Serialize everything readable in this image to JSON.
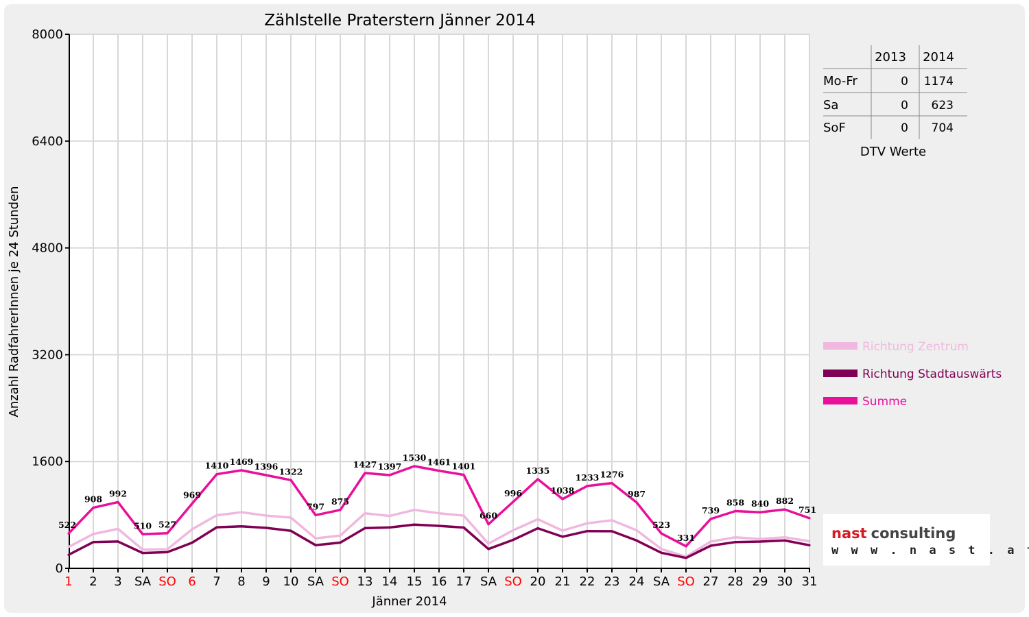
{
  "chart_data": {
    "type": "line",
    "title": "Zählstelle Praterstern Jänner 2014",
    "xlabel": "Jänner 2014",
    "ylabel": "Anzahl RadfahrerInnen je 24 Stunden",
    "ylim": [
      0,
      8000
    ],
    "yticks": [
      0,
      1600,
      3200,
      4800,
      6400,
      8000
    ],
    "grid": true,
    "legend_position": "right",
    "categories": [
      "1",
      "2",
      "3",
      "SA",
      "SO",
      "6",
      "7",
      "8",
      "9",
      "10",
      "SA",
      "SO",
      "13",
      "14",
      "15",
      "16",
      "17",
      "SA",
      "SO",
      "20",
      "21",
      "22",
      "23",
      "24",
      "SA",
      "SO",
      "27",
      "28",
      "29",
      "30",
      "31"
    ],
    "category_colors": [
      "#ff0000",
      "#000000",
      "#000000",
      "#000000",
      "#ff0000",
      "#ff0000",
      "#000000",
      "#000000",
      "#000000",
      "#000000",
      "#000000",
      "#ff0000",
      "#000000",
      "#000000",
      "#000000",
      "#000000",
      "#000000",
      "#000000",
      "#ff0000",
      "#000000",
      "#000000",
      "#000000",
      "#000000",
      "#000000",
      "#000000",
      "#ff0000",
      "#000000",
      "#000000",
      "#000000",
      "#000000",
      "#000000"
    ],
    "series": [
      {
        "name": "Richtung Zentrum",
        "color": "#f0b8de",
        "values": [
          320,
          515,
          590,
          280,
          285,
          585,
          795,
          840,
          790,
          760,
          450,
          490,
          825,
          785,
          875,
          825,
          790,
          370,
          570,
          735,
          565,
          675,
          720,
          570,
          290,
          175,
          400,
          465,
          440,
          465,
          405
        ]
      },
      {
        "name": "Richtung Stadtauswärts",
        "color": "#800055",
        "values": [
          202,
          393,
          402,
          230,
          242,
          384,
          615,
          629,
          606,
          562,
          347,
          385,
          602,
          612,
          655,
          636,
          611,
          290,
          426,
          600,
          473,
          558,
          556,
          417,
          233,
          156,
          339,
          393,
          400,
          417,
          346
        ]
      },
      {
        "name": "Summe",
        "color": "#e8109a",
        "values": [
          522,
          908,
          992,
          510,
          527,
          969,
          1410,
          1469,
          1396,
          1322,
          797,
          875,
          1427,
          1397,
          1530,
          1461,
          1401,
          660,
          996,
          1335,
          1038,
          1233,
          1276,
          987,
          523,
          331,
          739,
          858,
          840,
          882,
          751
        ]
      }
    ],
    "data_labels": [
      "522",
      "908",
      "992",
      "510",
      "527",
      "969",
      "1410",
      "1469",
      "1396",
      "1322",
      "797",
      "875",
      "1427",
      "1397",
      "1530",
      "1461",
      "1401",
      "660",
      "996",
      "1335",
      "1038",
      "1233",
      "1276",
      "987",
      "523",
      "331",
      "739",
      "858",
      "840",
      "882",
      "751"
    ]
  },
  "dtv_table": {
    "caption": "DTV Werte",
    "years": [
      "2013",
      "2014"
    ],
    "rows": [
      {
        "label": "Mo-Fr",
        "v2013": "0",
        "v2014": "1174"
      },
      {
        "label": "Sa",
        "v2013": "0",
        "v2014": "623"
      },
      {
        "label": "SoF",
        "v2013": "0",
        "v2014": "704"
      }
    ]
  },
  "logo": {
    "brand": "nast consulting",
    "url": "w w w . n a s t . a t"
  }
}
